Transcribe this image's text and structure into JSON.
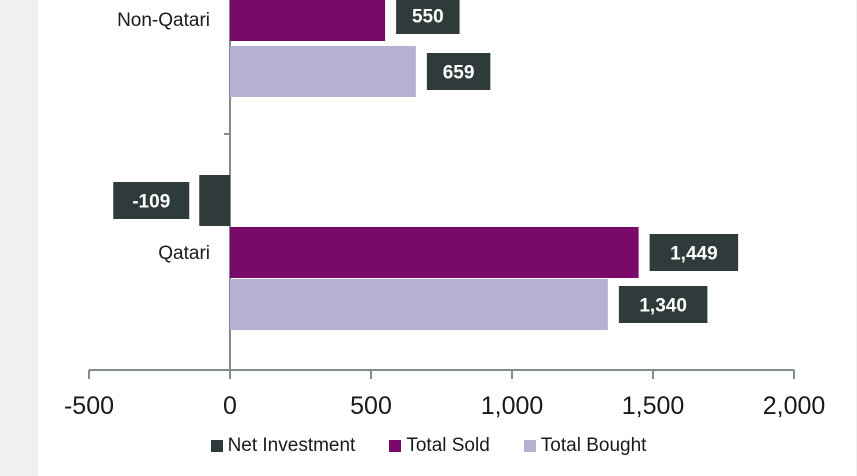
{
  "chart_data": {
    "type": "bar",
    "orientation": "horizontal",
    "categories": [
      "Non-Qatari",
      "Qatari"
    ],
    "series": [
      {
        "name": "Net Investment",
        "values": [
          null,
          -109
        ],
        "color": "#2f3b3a"
      },
      {
        "name": "Total Sold",
        "values": [
          550,
          1449
        ],
        "color": "#7a0a6a"
      },
      {
        "name": "Total Bought",
        "values": [
          659,
          1340
        ],
        "color": "#b6b1d1"
      }
    ],
    "data_labels": {
      "Non-Qatari": {
        "Total Sold": "550",
        "Total Bought": "659"
      },
      "Qatari": {
        "Net Investment": "-109",
        "Total Sold": "1,449",
        "Total Bought": "1,340"
      }
    },
    "xlim": [
      -500,
      2000
    ],
    "x_ticks": [
      "-500",
      "0",
      "500",
      "1,000",
      "1,500",
      "2,000"
    ],
    "grid": false,
    "legend_position": "bottom",
    "label_box_color": "#2f3b3a"
  }
}
